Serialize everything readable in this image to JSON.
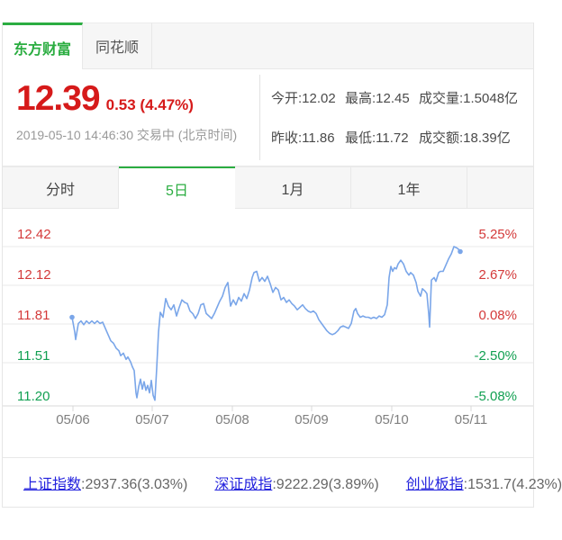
{
  "colors": {
    "up_red": "#d61a1a",
    "down_green": "#12a052",
    "accent_green": "#2bad41",
    "line_blue": "#7aa6e9",
    "link_blue": "#2322dd"
  },
  "source_tabs": [
    {
      "label": "东方财富",
      "active": true
    },
    {
      "label": "同花顺",
      "active": false
    }
  ],
  "quote": {
    "price": "12.39",
    "change": "0.53 (4.47%)",
    "datetime": "2019-05-10 14:46:30 交易中 (北京时间)",
    "stats": [
      "今开:12.02",
      "最高:12.45",
      "成交量:1.5048亿",
      "昨收:11.86",
      "最低:11.72",
      "成交额:18.39亿"
    ]
  },
  "period_tabs": [
    {
      "label": "分时",
      "active": false
    },
    {
      "label": "5日",
      "active": true
    },
    {
      "label": "1月",
      "active": false
    },
    {
      "label": "1年",
      "active": false
    }
  ],
  "chart_data": {
    "type": "line",
    "y_axis_left": {
      "labels": [
        "12.42",
        "12.12",
        "11.81",
        "11.51",
        "11.20"
      ],
      "tone": [
        "up",
        "up",
        "up",
        "down",
        "down"
      ]
    },
    "y_axis_right": {
      "labels": [
        "5.25%",
        "2.67%",
        "0.08%",
        "-2.50%",
        "-5.08%"
      ],
      "tone": [
        "up",
        "up",
        "up",
        "down",
        "down"
      ]
    },
    "x_axis": {
      "labels": [
        "05/06",
        "05/07",
        "05/08",
        "05/09",
        "05/10",
        "05/11"
      ]
    },
    "ylim": [
      11.2,
      12.42
    ],
    "grid": true,
    "legend": "none",
    "series": [
      {
        "name": "price",
        "points": [
          [
            77,
            11.85
          ],
          [
            80,
            11.73
          ],
          [
            81,
            11.67
          ],
          [
            84,
            11.8
          ],
          [
            87,
            11.82
          ],
          [
            90,
            11.79
          ],
          [
            93,
            11.82
          ],
          [
            96,
            11.8
          ],
          [
            99,
            11.82
          ],
          [
            102,
            11.8
          ],
          [
            105,
            11.82
          ],
          [
            108,
            11.8
          ],
          [
            111,
            11.81
          ],
          [
            114,
            11.76
          ],
          [
            117,
            11.71
          ],
          [
            120,
            11.66
          ],
          [
            123,
            11.64
          ],
          [
            126,
            11.6
          ],
          [
            129,
            11.58
          ],
          [
            131,
            11.54
          ],
          [
            134,
            11.56
          ],
          [
            137,
            11.51
          ],
          [
            139,
            11.53
          ],
          [
            142,
            11.49
          ],
          [
            144,
            11.45
          ],
          [
            146,
            11.42
          ],
          [
            148,
            11.24
          ],
          [
            149,
            11.2
          ],
          [
            151,
            11.29
          ],
          [
            153,
            11.35
          ],
          [
            155,
            11.27
          ],
          [
            157,
            11.33
          ],
          [
            159,
            11.26
          ],
          [
            161,
            11.3
          ],
          [
            163,
            11.24
          ],
          [
            165,
            11.34
          ],
          [
            167,
            11.22
          ],
          [
            169,
            11.18
          ],
          [
            171,
            11.44
          ],
          [
            173,
            11.73
          ],
          [
            175,
            11.89
          ],
          [
            178,
            11.85
          ],
          [
            181,
            12.0
          ],
          [
            184,
            11.94
          ],
          [
            187,
            11.91
          ],
          [
            190,
            11.95
          ],
          [
            193,
            11.86
          ],
          [
            196,
            11.93
          ],
          [
            199,
            11.99
          ],
          [
            202,
            11.97
          ],
          [
            205,
            11.96
          ],
          [
            208,
            11.9
          ],
          [
            211,
            11.88
          ],
          [
            214,
            11.84
          ],
          [
            217,
            11.88
          ],
          [
            220,
            11.95
          ],
          [
            223,
            11.96
          ],
          [
            226,
            11.88
          ],
          [
            229,
            11.86
          ],
          [
            232,
            11.84
          ],
          [
            235,
            11.88
          ],
          [
            238,
            11.93
          ],
          [
            241,
            11.98
          ],
          [
            244,
            12.02
          ],
          [
            247,
            12.09
          ],
          [
            250,
            12.13
          ],
          [
            253,
            11.94
          ],
          [
            256,
            11.99
          ],
          [
            259,
            11.95
          ],
          [
            262,
            12.01
          ],
          [
            265,
            11.98
          ],
          [
            268,
            12.04
          ],
          [
            271,
            12.0
          ],
          [
            274,
            12.07
          ],
          [
            277,
            12.17
          ],
          [
            279,
            12.21
          ],
          [
            282,
            12.22
          ],
          [
            285,
            12.14
          ],
          [
            288,
            12.17
          ],
          [
            291,
            12.14
          ],
          [
            294,
            12.18
          ],
          [
            297,
            12.12
          ],
          [
            300,
            12.05
          ],
          [
            303,
            12.09
          ],
          [
            306,
            12.07
          ],
          [
            309,
            11.99
          ],
          [
            312,
            12.01
          ],
          [
            315,
            11.97
          ],
          [
            318,
            11.99
          ],
          [
            321,
            11.96
          ],
          [
            324,
            11.94
          ],
          [
            327,
            11.91
          ],
          [
            330,
            11.93
          ],
          [
            333,
            11.95
          ],
          [
            336,
            11.92
          ],
          [
            339,
            11.9
          ],
          [
            342,
            11.89
          ],
          [
            345,
            11.9
          ],
          [
            348,
            11.88
          ],
          [
            351,
            11.83
          ],
          [
            354,
            11.8
          ],
          [
            357,
            11.77
          ],
          [
            360,
            11.74
          ],
          [
            363,
            11.72
          ],
          [
            366,
            11.71
          ],
          [
            369,
            11.72
          ],
          [
            372,
            11.74
          ],
          [
            375,
            11.77
          ],
          [
            378,
            11.78
          ],
          [
            381,
            11.77
          ],
          [
            384,
            11.76
          ],
          [
            387,
            11.8
          ],
          [
            390,
            11.9
          ],
          [
            392,
            11.92
          ],
          [
            394,
            11.88
          ],
          [
            397,
            11.85
          ],
          [
            400,
            11.86
          ],
          [
            403,
            11.85
          ],
          [
            406,
            11.85
          ],
          [
            409,
            11.84
          ],
          [
            412,
            11.85
          ],
          [
            415,
            11.84
          ],
          [
            418,
            11.86
          ],
          [
            421,
            11.85
          ],
          [
            424,
            11.87
          ],
          [
            427,
            11.95
          ],
          [
            429,
            12.17
          ],
          [
            431,
            12.26
          ],
          [
            433,
            12.22
          ],
          [
            435,
            12.25
          ],
          [
            437,
            12.24
          ],
          [
            439,
            12.28
          ],
          [
            442,
            12.31
          ],
          [
            445,
            12.28
          ],
          [
            448,
            12.22
          ],
          [
            451,
            12.19
          ],
          [
            453,
            12.21
          ],
          [
            456,
            12.19
          ],
          [
            459,
            12.13
          ],
          [
            461,
            12.06
          ],
          [
            464,
            12.02
          ],
          [
            466,
            12.08
          ],
          [
            469,
            12.06
          ],
          [
            471,
            12.04
          ],
          [
            473,
            11.88
          ],
          [
            474,
            11.77
          ],
          [
            476,
            12.15
          ],
          [
            479,
            12.17
          ],
          [
            481,
            12.14
          ],
          [
            484,
            12.21
          ],
          [
            486,
            12.22
          ],
          [
            489,
            12.22
          ],
          [
            492,
            12.27
          ],
          [
            495,
            12.32
          ],
          [
            498,
            12.36
          ],
          [
            501,
            12.42
          ],
          [
            504,
            12.41
          ],
          [
            506,
            12.4
          ],
          [
            508,
            12.38
          ]
        ]
      }
    ]
  },
  "indices": [
    {
      "name": "上证指数",
      "value": ":2937.36(3.03%)"
    },
    {
      "name": "深证成指",
      "value": ":9222.29(3.89%)"
    },
    {
      "name": "创业板指",
      "value": ":1531.7(4.23%)"
    }
  ]
}
